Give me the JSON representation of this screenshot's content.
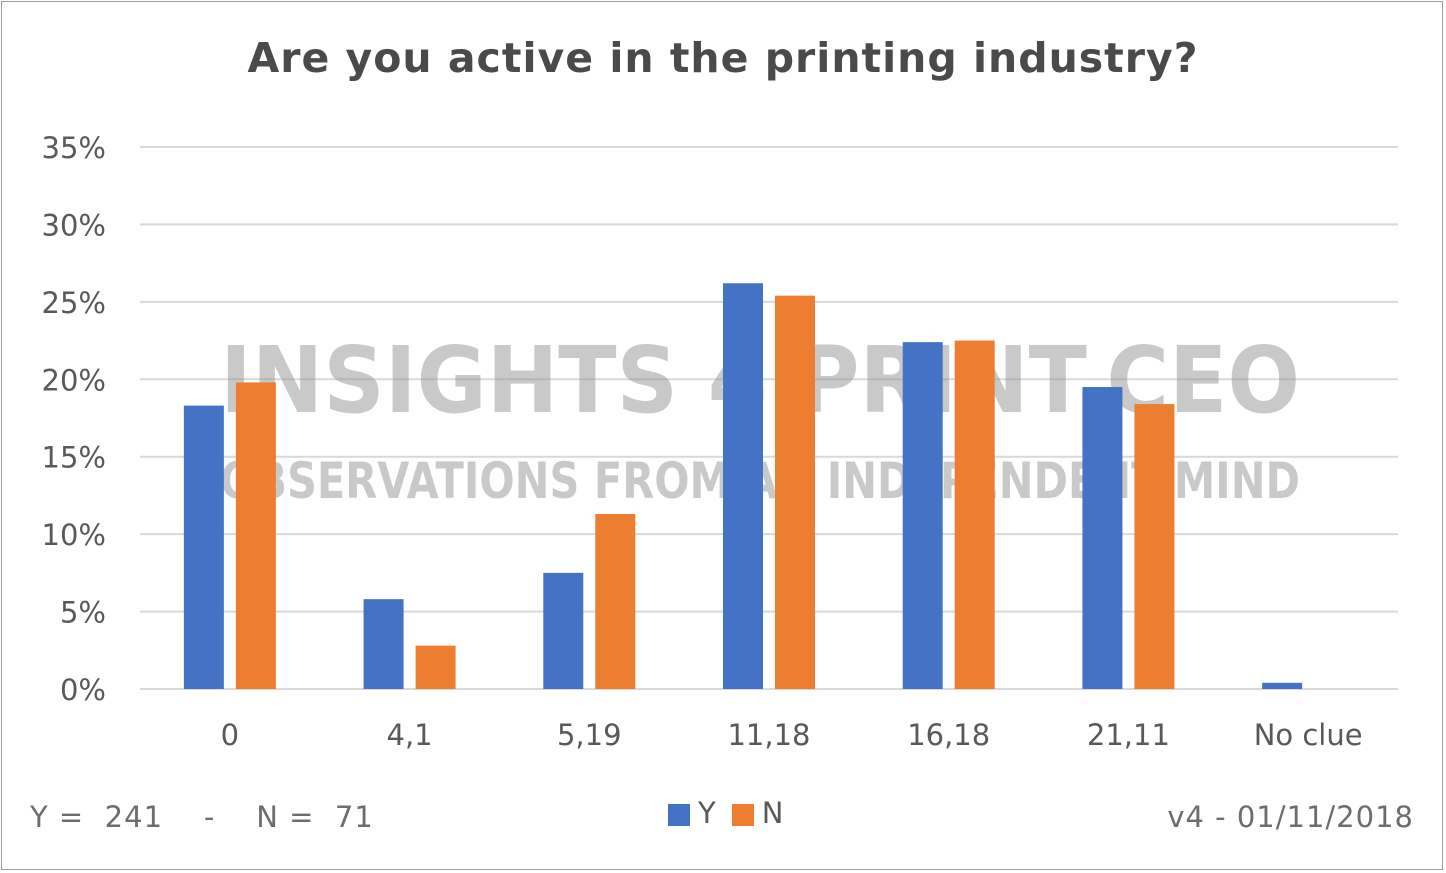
{
  "colors": {
    "series_y": "#4472c4",
    "series_n": "#ed7d31",
    "grid": "#d9d9d9",
    "axis_text": "#595959",
    "watermark": "#8a8a8a"
  },
  "watermark": {
    "line1": "INSIGHTS 4 PRINT.CEO",
    "line2": "OBSERVATIONS FROM AN INDEPENDENT MIND"
  },
  "footer": {
    "sample_sizes": "Y =  241    -    N =  71",
    "version": "v4 - 01/11/2018"
  },
  "chart_data": {
    "type": "bar",
    "title": "Are you active in the printing industry?",
    "xlabel": "",
    "ylabel": "",
    "categories": [
      "0",
      "4,1",
      "5,19",
      "11,18",
      "16,18",
      "21,11",
      "No clue"
    ],
    "series": [
      {
        "name": "Y",
        "values": [
          18.3,
          5.8,
          7.5,
          26.2,
          22.4,
          19.5,
          0.4
        ]
      },
      {
        "name": "N",
        "values": [
          19.8,
          2.8,
          11.3,
          25.4,
          22.5,
          18.4,
          0
        ]
      }
    ],
    "ylim": [
      0,
      35
    ],
    "yticks": [
      "0%",
      "5%",
      "10%",
      "15%",
      "20%",
      "25%",
      "30%",
      "35%"
    ],
    "grid": true,
    "legend": "bottom"
  }
}
